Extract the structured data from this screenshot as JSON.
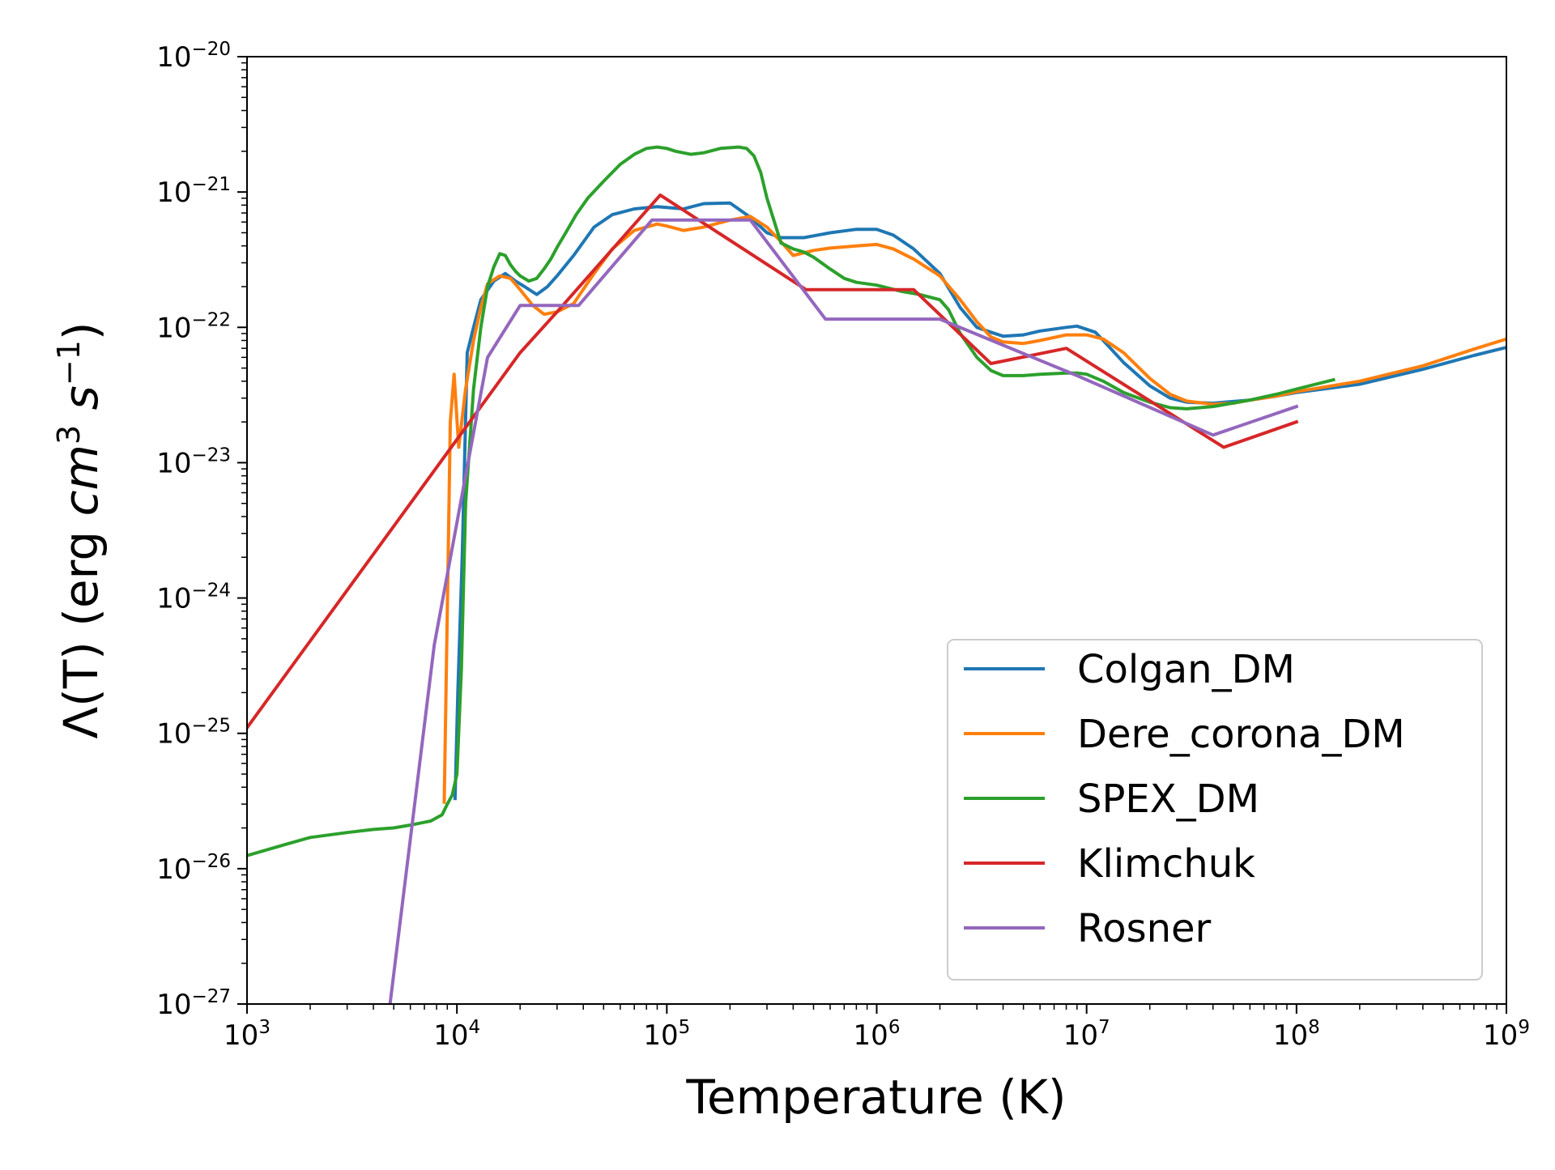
{
  "chart_data": {
    "type": "line",
    "title": "",
    "xlabel": "Temperature (K)",
    "ylabel": {
      "base": "Λ(T) (erg ",
      "cm": "cm",
      "cm_exp": "3",
      "s": " s",
      "s_exp": "−1",
      "close": ")"
    },
    "xscale": "log",
    "yscale": "log",
    "xlim": [
      1000,
      1000000000
    ],
    "ylim": [
      1e-27,
      1e-20
    ],
    "x_ticks": [
      {
        "base": "10",
        "exp": "3"
      },
      {
        "base": "10",
        "exp": "4"
      },
      {
        "base": "10",
        "exp": "5"
      },
      {
        "base": "10",
        "exp": "6"
      },
      {
        "base": "10",
        "exp": "7"
      },
      {
        "base": "10",
        "exp": "8"
      },
      {
        "base": "10",
        "exp": "9"
      }
    ],
    "y_ticks": [
      {
        "base": "10",
        "exp": "−20"
      },
      {
        "base": "10",
        "exp": "−21"
      },
      {
        "base": "10",
        "exp": "−22"
      },
      {
        "base": "10",
        "exp": "−23"
      },
      {
        "base": "10",
        "exp": "−24"
      },
      {
        "base": "10",
        "exp": "−25"
      },
      {
        "base": "10",
        "exp": "−26"
      },
      {
        "base": "10",
        "exp": "−27"
      }
    ],
    "grid": false,
    "legend_position": "lower-right",
    "series": [
      {
        "name": "Colgan_DM",
        "color": "#1f77b4",
        "x": [
          9800,
          10100,
          10600,
          11200,
          12000,
          13000,
          15000,
          17000,
          19000,
          21000,
          24000,
          27000,
          30000,
          36000,
          45000,
          55000,
          70000,
          90000,
          120000,
          150000,
          200000,
          250000,
          300000,
          350000,
          450000,
          600000,
          800000,
          1000000,
          1200000,
          1500000,
          2000000,
          2500000,
          3000000,
          3500000,
          4000000,
          5000000,
          6000000,
          8000000,
          9000000,
          11000000,
          12000000,
          15000000,
          20000000,
          25000000,
          30000000,
          40000000,
          60000000,
          80000000,
          100000000,
          200000000,
          400000000,
          700000000,
          1000000000
        ],
        "y": [
          3.3e-26,
          2e-25,
          2e-24,
          6.5e-23,
          1e-22,
          1.6e-22,
          2.2e-22,
          2.5e-22,
          2.2e-22,
          2e-22,
          1.75e-22,
          2e-22,
          2.4e-22,
          3.4e-22,
          5.5e-22,
          6.8e-22,
          7.5e-22,
          7.8e-22,
          7.5e-22,
          8.2e-22,
          8.3e-22,
          6.5e-22,
          5e-22,
          4.6e-22,
          4.6e-22,
          5e-22,
          5.3e-22,
          5.3e-22,
          4.8e-22,
          3.8e-22,
          2.5e-22,
          1.4e-22,
          1e-22,
          9.2e-23,
          8.6e-23,
          8.8e-23,
          9.4e-23,
          1e-22,
          1.02e-22,
          9.2e-23,
          8e-23,
          5.5e-23,
          3.7e-23,
          3e-23,
          2.8e-23,
          2.75e-23,
          2.9e-23,
          3.1e-23,
          3.3e-23,
          3.8e-23,
          4.9e-23,
          6.2e-23,
          7.1e-23
        ]
      },
      {
        "name": "Dere_corona_DM",
        "color": "#ff7f0e",
        "x": [
          8700,
          9000,
          9300,
          9700,
          10200,
          11000,
          12000,
          13000,
          14000,
          16000,
          18000,
          20000,
          23000,
          26000,
          30000,
          36000,
          45000,
          55000,
          70000,
          90000,
          100000,
          120000,
          150000,
          200000,
          250000,
          300000,
          350000,
          400000,
          500000,
          600000,
          800000,
          1000000,
          1200000,
          1500000,
          2000000,
          2500000,
          3000000,
          3500000,
          4000000,
          5000000,
          6000000,
          8000000,
          10000000,
          12000000,
          15000000,
          20000000,
          25000000,
          30000000,
          40000000,
          50000000,
          60000000,
          80000000,
          100000000,
          200000000,
          400000000,
          700000000,
          1000000000
        ],
        "y": [
          3.1e-26,
          8e-25,
          2e-23,
          4.5e-23,
          1.3e-23,
          3.5e-23,
          8e-23,
          1.4e-22,
          2.1e-22,
          2.4e-22,
          2.3e-22,
          1.9e-22,
          1.45e-22,
          1.25e-22,
          1.3e-22,
          1.5e-22,
          2.5e-22,
          3.8e-22,
          5.2e-22,
          5.8e-22,
          5.6e-22,
          5.2e-22,
          5.5e-22,
          6.2e-22,
          6.6e-22,
          5.5e-22,
          4.3e-22,
          3.4e-22,
          3.7e-22,
          3.85e-22,
          4e-22,
          4.1e-22,
          3.8e-22,
          3.2e-22,
          2.4e-22,
          1.6e-22,
          1.1e-22,
          8.5e-23,
          7.8e-23,
          7.6e-23,
          8e-23,
          8.8e-23,
          8.8e-23,
          8.2e-23,
          6.5e-23,
          4.2e-23,
          3.2e-23,
          2.85e-23,
          2.7e-23,
          2.75e-23,
          2.9e-23,
          3.1e-23,
          3.35e-23,
          4e-23,
          5.2e-23,
          6.9e-23,
          8.2e-23
        ]
      },
      {
        "name": "SPEX_DM",
        "color": "#2ca02c",
        "x": [
          1000,
          1500,
          2000,
          3000,
          4000,
          5000,
          6000,
          7000,
          7500,
          8500,
          9000,
          9500,
          10000,
          10500,
          11000,
          12000,
          13000,
          14000,
          15000,
          16000,
          17000,
          18000,
          19000,
          20000,
          22000,
          24000,
          26000,
          28000,
          30000,
          33000,
          37000,
          42000,
          50000,
          60000,
          70000,
          80000,
          90000,
          100000,
          110000,
          130000,
          150000,
          180000,
          220000,
          240000,
          260000,
          280000,
          300000,
          350000,
          400000,
          450000,
          500000,
          600000,
          700000,
          800000,
          1000000,
          1300000,
          1600000,
          2000000,
          2200000,
          2500000,
          3000000,
          3500000,
          4000000,
          5000000,
          6000000,
          8000000,
          9000000,
          10000000,
          12000000,
          15000000,
          20000000,
          25000000,
          30000000,
          40000000,
          60000000,
          80000000,
          100000000,
          150000000
        ],
        "y": [
          1.25e-26,
          1.5e-26,
          1.7e-26,
          1.85e-26,
          1.95e-26,
          2e-26,
          2.1e-26,
          2.2e-26,
          2.25e-26,
          2.5e-26,
          3e-26,
          3.5e-26,
          5e-26,
          3e-25,
          5e-24,
          3.5e-23,
          1e-22,
          2e-22,
          2.8e-22,
          3.5e-22,
          3.4e-22,
          2.9e-22,
          2.6e-22,
          2.4e-22,
          2.2e-22,
          2.3e-22,
          2.7e-22,
          3.2e-22,
          3.9e-22,
          5e-22,
          6.8e-22,
          9e-22,
          1.2e-21,
          1.6e-21,
          1.9e-21,
          2.1e-21,
          2.15e-21,
          2.1e-21,
          2e-21,
          1.9e-21,
          1.95e-21,
          2.1e-21,
          2.15e-21,
          2.1e-21,
          1.85e-21,
          1.4e-21,
          9e-22,
          4.2e-22,
          3.8e-22,
          3.6e-22,
          3.3e-22,
          2.7e-22,
          2.3e-22,
          2.15e-22,
          2.05e-22,
          1.85e-22,
          1.75e-22,
          1.6e-22,
          1.35e-22,
          9e-23,
          6e-23,
          4.8e-23,
          4.4e-23,
          4.4e-23,
          4.5e-23,
          4.6e-23,
          4.6e-23,
          4.5e-23,
          4e-23,
          3.3e-23,
          2.8e-23,
          2.55e-23,
          2.5e-23,
          2.6e-23,
          2.9e-23,
          3.2e-23,
          3.5e-23,
          4.1e-23
        ]
      },
      {
        "name": "Klimchuk",
        "color": "#d62728",
        "x": [
          1000,
          20000,
          30000,
          93000,
          460000,
          1500000,
          3500000,
          8000000,
          45000000,
          100000000
        ],
        "y": [
          1.1e-25,
          6.5e-23,
          1.3e-22,
          9.5e-22,
          1.9e-22,
          1.9e-22,
          5.4e-23,
          7e-23,
          1.3e-23,
          2e-23
        ]
      },
      {
        "name": "Rosner",
        "color": "#9467bd",
        "x": [
          4800,
          7800,
          14000,
          20000,
          38000,
          85000,
          250000,
          570000,
          2000000,
          9000000,
          40000000,
          100000000
        ],
        "y": [
          1e-27,
          4.5e-25,
          6e-23,
          1.45e-22,
          1.45e-22,
          6.2e-22,
          6.2e-22,
          1.15e-22,
          1.15e-22,
          4.4e-23,
          1.6e-23,
          2.6e-23
        ]
      }
    ]
  }
}
